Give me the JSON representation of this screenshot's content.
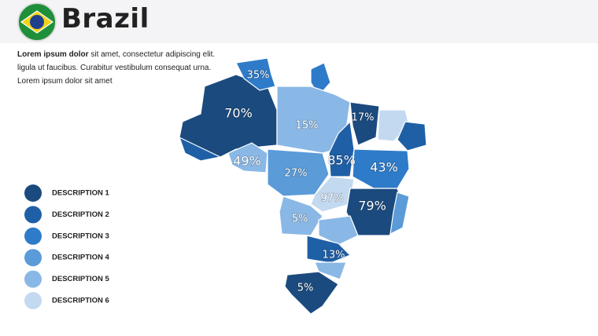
{
  "header": {
    "title": "Brazil"
  },
  "description": {
    "bold": "Lorem ipsum dolor",
    "lines": [
      "sit amet, consectetur adipiscing elit.",
      "ligula ut faucibus. Curabitur vestibulum consequat urna.",
      "Lorem ipsum dolor sit amet"
    ]
  },
  "legend": [
    {
      "label": "DESCRIPTION 1",
      "color": "#1b4a7e"
    },
    {
      "label": "DESCRIPTION 2",
      "color": "#1f5fa6"
    },
    {
      "label": "DESCRIPTION 3",
      "color": "#2e7bc9"
    },
    {
      "label": "DESCRIPTION 4",
      "color": "#5a9bd8"
    },
    {
      "label": "DESCRIPTION 5",
      "color": "#8ab8e6"
    },
    {
      "label": "DESCRIPTION 6",
      "color": "#c3d9f0"
    }
  ],
  "regions": [
    {
      "label": "35%"
    },
    {
      "label": "70%"
    },
    {
      "label": "15%"
    },
    {
      "label": "17%"
    },
    {
      "label": "49%"
    },
    {
      "label": "27%"
    },
    {
      "label": "85%"
    },
    {
      "label": "43%"
    },
    {
      "label": "97%"
    },
    {
      "label": "79%"
    },
    {
      "label": "5%"
    },
    {
      "label": "13%"
    },
    {
      "label": "5%"
    }
  ]
}
